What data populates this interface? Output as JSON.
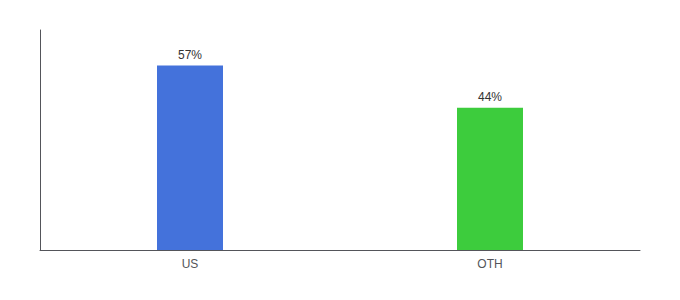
{
  "chart_data": {
    "type": "bar",
    "categories": [
      "US",
      "OTH"
    ],
    "values": [
      57,
      44
    ],
    "value_labels": [
      "57%",
      "44%"
    ],
    "colors": [
      "#4472db",
      "#3dcc3d"
    ],
    "data_labels": true,
    "ylim": [
      0,
      68
    ],
    "grid": false,
    "tick_labels": "x"
  }
}
